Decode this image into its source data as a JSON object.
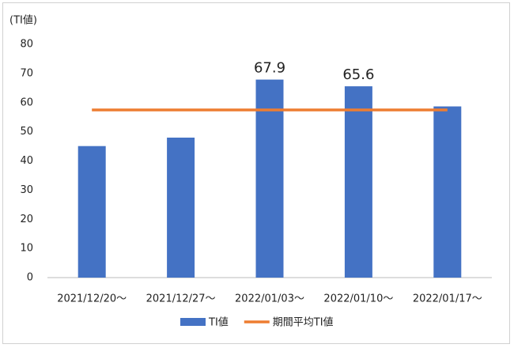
{
  "chart_data": {
    "type": "bar",
    "y_label": "(TI値)",
    "categories": [
      "2021/12/20～",
      "2021/12/27～",
      "2022/01/03～",
      "2022/01/10～",
      "2022/01/17～"
    ],
    "series": [
      {
        "name": "TI値",
        "type": "bar",
        "color": "#4472c4",
        "values": [
          45.1,
          48,
          67.9,
          65.6,
          58.7
        ],
        "value_labels": [
          null,
          null,
          "67.9",
          "65.6",
          null
        ]
      },
      {
        "name": "期間平均TI値",
        "type": "line",
        "color": "#ed7d31",
        "values": [
          57.5,
          57.5,
          57.5,
          57.5,
          57.5
        ]
      }
    ],
    "ylim": [
      0,
      80
    ],
    "yticks": [
      0,
      10,
      20,
      30,
      40,
      50,
      60,
      70,
      80
    ],
    "grid": false,
    "legend": "bottom"
  }
}
